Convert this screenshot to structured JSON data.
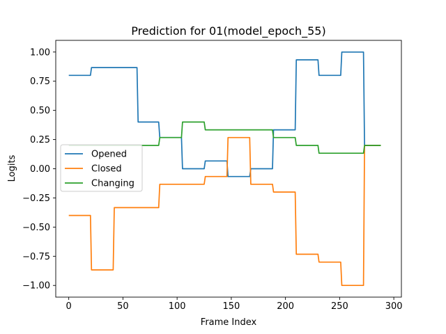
{
  "chart_data": {
    "type": "line",
    "title": "Prediction for 01(model_epoch_55)",
    "xlabel": "Frame Index",
    "ylabel": "Logits",
    "xlim": [
      -12,
      307
    ],
    "ylim": [
      -1.1,
      1.1
    ],
    "xticks": [
      0,
      50,
      100,
      150,
      200,
      250,
      300
    ],
    "yticks": [
      -1.0,
      -0.75,
      -0.5,
      -0.25,
      0.0,
      0.25,
      0.5,
      0.75,
      1.0
    ],
    "xtick_labels": [
      "0",
      "50",
      "100",
      "150",
      "200",
      "250",
      "300"
    ],
    "ytick_labels": [
      "−1.00",
      "−0.75",
      "−0.50",
      "−0.25",
      "0.00",
      "0.25",
      "0.50",
      "0.75",
      "1.00"
    ],
    "grid": false,
    "legend_position": "center-left",
    "series": [
      {
        "name": "Opened",
        "color": "#1f77b4",
        "x": [
          0,
          20,
          21,
          63,
          64,
          83,
          84,
          104,
          105,
          125,
          126,
          146,
          147,
          167,
          168,
          188,
          189,
          209,
          210,
          230,
          231,
          251,
          252,
          272,
          273,
          288
        ],
        "y": [
          0.8,
          0.8,
          0.867,
          0.867,
          0.4,
          0.4,
          0.267,
          0.267,
          0.0,
          0.0,
          0.067,
          0.067,
          -0.067,
          -0.067,
          0.0,
          0.0,
          0.333,
          0.333,
          0.933,
          0.933,
          0.8,
          0.8,
          1.0,
          1.0,
          0.2,
          0.2
        ]
      },
      {
        "name": "Closed",
        "color": "#ff7f0e",
        "x": [
          0,
          20,
          21,
          41,
          42,
          83,
          84,
          125,
          126,
          146,
          147,
          167,
          168,
          188,
          189,
          209,
          210,
          230,
          231,
          251,
          252,
          272,
          273,
          288
        ],
        "y": [
          -0.4,
          -0.4,
          -0.867,
          -0.867,
          -0.333,
          -0.333,
          -0.133,
          -0.133,
          -0.067,
          -0.067,
          0.267,
          0.267,
          -0.133,
          -0.133,
          -0.2,
          -0.2,
          -0.733,
          -0.733,
          -0.8,
          -0.8,
          -1.0,
          -1.0,
          0.2,
          0.2
        ]
      },
      {
        "name": "Changing",
        "color": "#2ca02c",
        "x": [
          0,
          83,
          84,
          104,
          105,
          125,
          126,
          188,
          189,
          209,
          210,
          230,
          231,
          272,
          273,
          288
        ],
        "y": [
          0.2,
          0.2,
          0.267,
          0.267,
          0.4,
          0.4,
          0.333,
          0.333,
          0.267,
          0.267,
          0.2,
          0.2,
          0.133,
          0.133,
          0.2,
          0.2
        ]
      }
    ]
  }
}
